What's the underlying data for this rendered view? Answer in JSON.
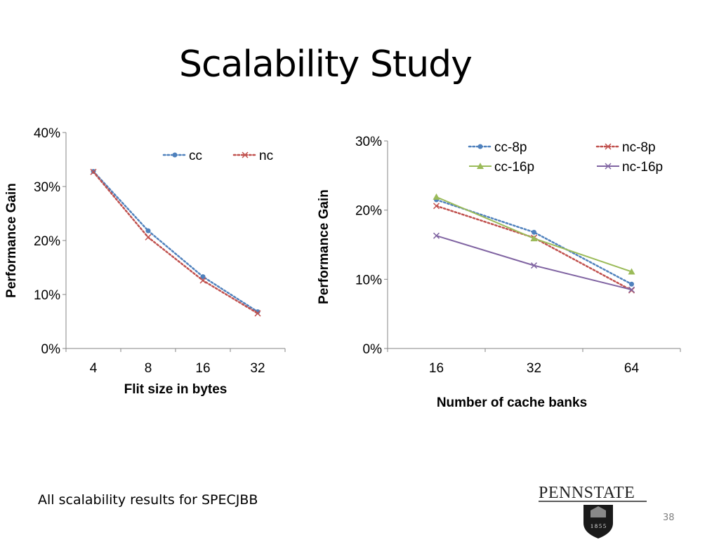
{
  "slide": {
    "title": "Scalability Study",
    "footnote": "All scalability results for SPECJBB",
    "page_number": "38",
    "logo_text": "PENNSTATE",
    "logo_year": "1 8 5 5"
  },
  "colors": {
    "blue": "#4f81bd",
    "red": "#c0504d",
    "green": "#9bbb59",
    "purple": "#8064a2",
    "axis": "#868686"
  },
  "chart_data": [
    {
      "type": "line",
      "categories": [
        "4",
        "8",
        "16",
        "32"
      ],
      "series": [
        {
          "name": "cc",
          "values": [
            32.8,
            21.8,
            13.3,
            6.8
          ],
          "color": "#4f81bd",
          "dash": "dotted",
          "marker": "circle"
        },
        {
          "name": "nc",
          "values": [
            32.7,
            20.6,
            12.6,
            6.5
          ],
          "color": "#c0504d",
          "dash": "dotted",
          "marker": "x"
        }
      ],
      "xlabel": "Flit size in bytes",
      "ylabel": "Performance Gain",
      "ylim": [
        0,
        40
      ],
      "yticks": [
        "0%",
        "10%",
        "20%",
        "30%",
        "40%"
      ],
      "grid": false,
      "legend": "top"
    },
    {
      "type": "line",
      "categories": [
        "16",
        "32",
        "64"
      ],
      "series": [
        {
          "name": "cc-8p",
          "values": [
            21.5,
            16.8,
            9.3
          ],
          "color": "#4f81bd",
          "dash": "dotted",
          "marker": "circle"
        },
        {
          "name": "nc-8p",
          "values": [
            20.6,
            16.0,
            8.4
          ],
          "color": "#c0504d",
          "dash": "dotted",
          "marker": "x"
        },
        {
          "name": "cc-16p",
          "values": [
            21.9,
            15.9,
            11.1
          ],
          "color": "#9bbb59",
          "dash": "solid",
          "marker": "triangle"
        },
        {
          "name": "nc-16p",
          "values": [
            16.3,
            12.0,
            8.5
          ],
          "color": "#8064a2",
          "dash": "solid",
          "marker": "x"
        }
      ],
      "xlabel": "Number of cache banks",
      "ylabel": "Performance Gain",
      "ylim": [
        0,
        30
      ],
      "yticks": [
        "0%",
        "10%",
        "20%",
        "30%"
      ],
      "grid": false,
      "legend": "top"
    }
  ]
}
